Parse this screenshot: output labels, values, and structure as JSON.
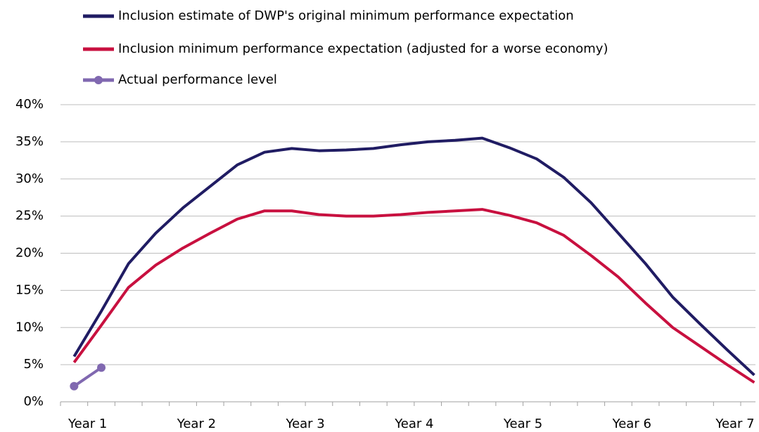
{
  "chart_data": {
    "type": "line",
    "categories": [
      "Year 1",
      null,
      null,
      null,
      "Year 2",
      null,
      null,
      null,
      "Year 3",
      null,
      null,
      null,
      "Year 4",
      null,
      null,
      null,
      "Year 5",
      null,
      null,
      null,
      "Year 6",
      null,
      null,
      null,
      "Year 7",
      null
    ],
    "series": [
      {
        "name": "Inclusion estimate of DWP's original minimum performance expectation",
        "color": "#201c63",
        "markers": false,
        "values": [
          6.1,
          12.2,
          18.6,
          22.7,
          26.1,
          29,
          31.9,
          33.6,
          34.1,
          33.8,
          33.9,
          34.1,
          34.6,
          35,
          35.2,
          35.5,
          34.2,
          32.7,
          30.2,
          26.8,
          22.7,
          18.6,
          14.1,
          10.5,
          7,
          3.6
        ]
      },
      {
        "name": "Inclusion minimum performance expectation (adjusted for a worse economy)",
        "color": "#c8103f",
        "markers": false,
        "values": [
          5.3,
          10.3,
          15.4,
          18.4,
          20.7,
          22.7,
          24.6,
          25.7,
          25.7,
          25.2,
          25,
          25,
          25.2,
          25.5,
          25.7,
          25.9,
          25.1,
          24.1,
          22.4,
          19.7,
          16.8,
          13.3,
          10,
          7.5,
          5,
          2.6
        ]
      },
      {
        "name": "Actual performance level",
        "color": "#8068b0",
        "markers": true,
        "values": [
          2.1,
          4.6,
          null,
          null,
          null,
          null,
          null,
          null,
          null,
          null,
          null,
          null,
          null,
          null,
          null,
          null,
          null,
          null,
          null,
          null,
          null,
          null,
          null,
          null,
          null,
          null
        ]
      }
    ],
    "ylim": [
      0,
      40
    ],
    "yticks": [
      {
        "value": 0,
        "label": "0%"
      },
      {
        "value": 5,
        "label": "5%"
      },
      {
        "value": 10,
        "label": "10%"
      },
      {
        "value": 15,
        "label": "15%"
      },
      {
        "value": 20,
        "label": "20%"
      },
      {
        "value": 25,
        "label": "25%"
      },
      {
        "value": 30,
        "label": "30%"
      },
      {
        "value": 35,
        "label": "35%"
      },
      {
        "value": 40,
        "label": "40%"
      }
    ],
    "grid": true,
    "legend": "top"
  }
}
